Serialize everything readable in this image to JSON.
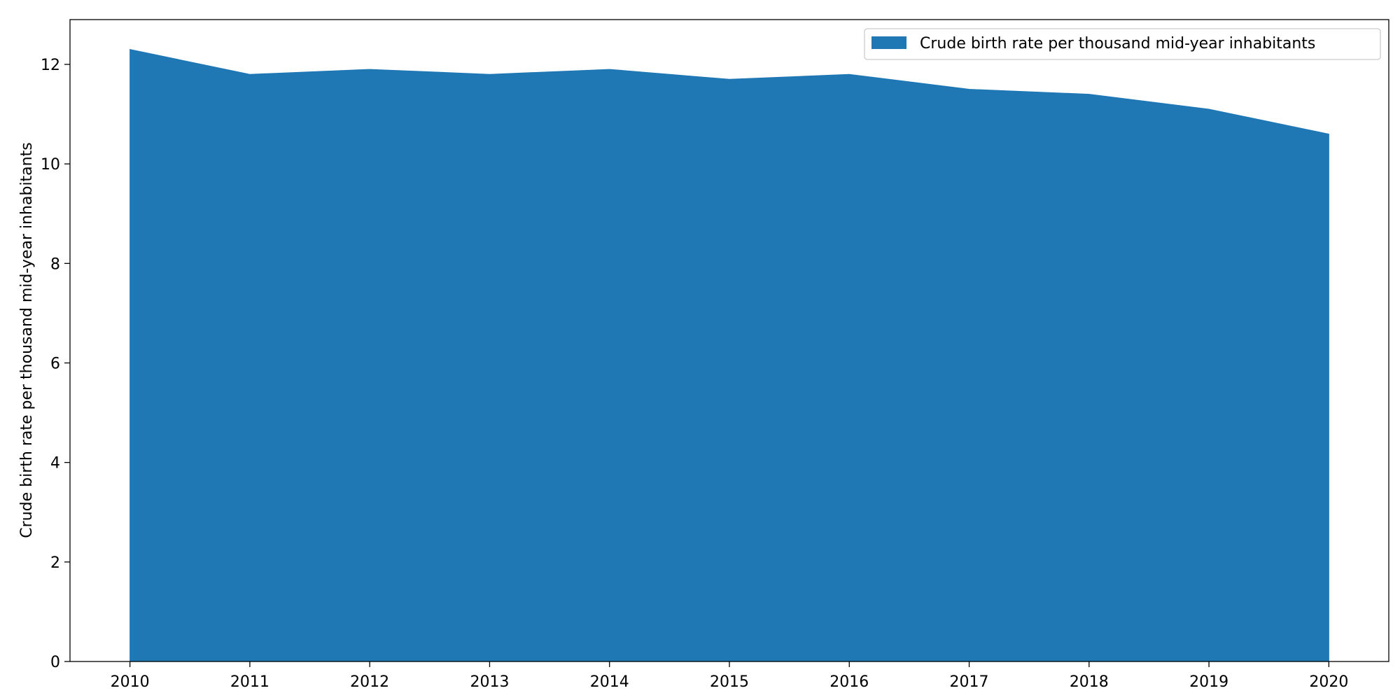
{
  "chart_data": {
    "type": "area",
    "x": [
      2010,
      2011,
      2012,
      2013,
      2014,
      2015,
      2016,
      2017,
      2018,
      2019,
      2020
    ],
    "series": [
      {
        "name": "Crude birth rate per thousand mid-year inhabitants",
        "values": [
          12.3,
          11.8,
          11.9,
          11.8,
          11.9,
          11.7,
          11.8,
          11.5,
          11.4,
          11.1,
          10.6
        ],
        "color": "#1f77b4"
      }
    ],
    "xlabel": "",
    "ylabel": "Crude birth rate per thousand mid-year inhabitants",
    "xlim": [
      2009.5,
      2020.5
    ],
    "ylim": [
      0,
      12.9
    ],
    "xticks": [
      "2010",
      "2011",
      "2012",
      "2013",
      "2014",
      "2015",
      "2016",
      "2017",
      "2018",
      "2019",
      "2020"
    ],
    "yticks": [
      "0",
      "2",
      "4",
      "6",
      "8",
      "10",
      "12"
    ],
    "grid": false,
    "legend_position": "top-right"
  }
}
